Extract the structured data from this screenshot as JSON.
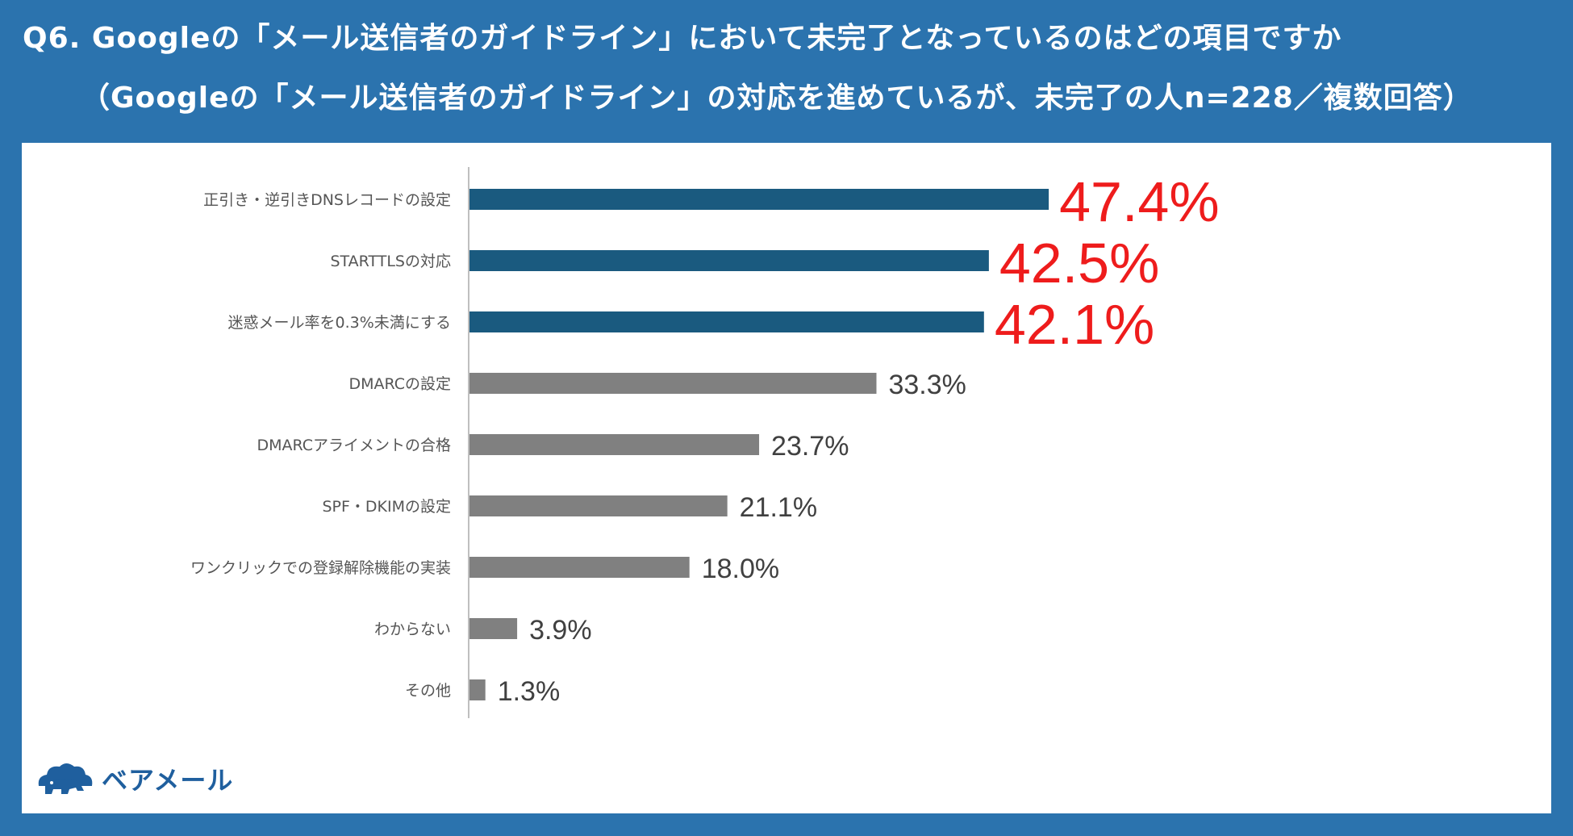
{
  "title": {
    "line1": "Q6. Googleの「メール送信者のガイドライン」において未完了となっているのはどの項目ですか",
    "line2": "（Googleの「メール送信者のガイドライン」の対応を進めているが、未完了の人n=228／複数回答）"
  },
  "brand": {
    "name": "ベアメール",
    "icon": "bear-cloud-logo-icon"
  },
  "colors": {
    "header_bg": "#2b73ae",
    "highlight_bar": "#1a5a7f",
    "normal_bar": "#808080",
    "highlight_label": "#ee1c1c",
    "normal_label": "#404040"
  },
  "chart_data": {
    "type": "bar",
    "orientation": "horizontal",
    "categories": [
      "正引き・逆引きDNSレコードの設定",
      "STARTTLSの対応",
      "迷惑メール率を0.3%未満にする",
      "DMARCの設定",
      "DMARCアライメントの合格",
      "SPF・DKIMの設定",
      "ワンクリックでの登録解除機能の実装",
      "わからない",
      "その他"
    ],
    "values": [
      47.4,
      42.5,
      42.1,
      33.3,
      23.7,
      21.1,
      18.0,
      3.9,
      1.3
    ],
    "value_labels": [
      "47.4%",
      "42.5%",
      "42.1%",
      "33.3%",
      "23.7%",
      "21.1%",
      "18.0%",
      "3.9%",
      "1.3%"
    ],
    "highlighted": [
      true,
      true,
      true,
      false,
      false,
      false,
      false,
      false,
      false
    ],
    "xlim": [
      0,
      100
    ],
    "grid": false
  }
}
